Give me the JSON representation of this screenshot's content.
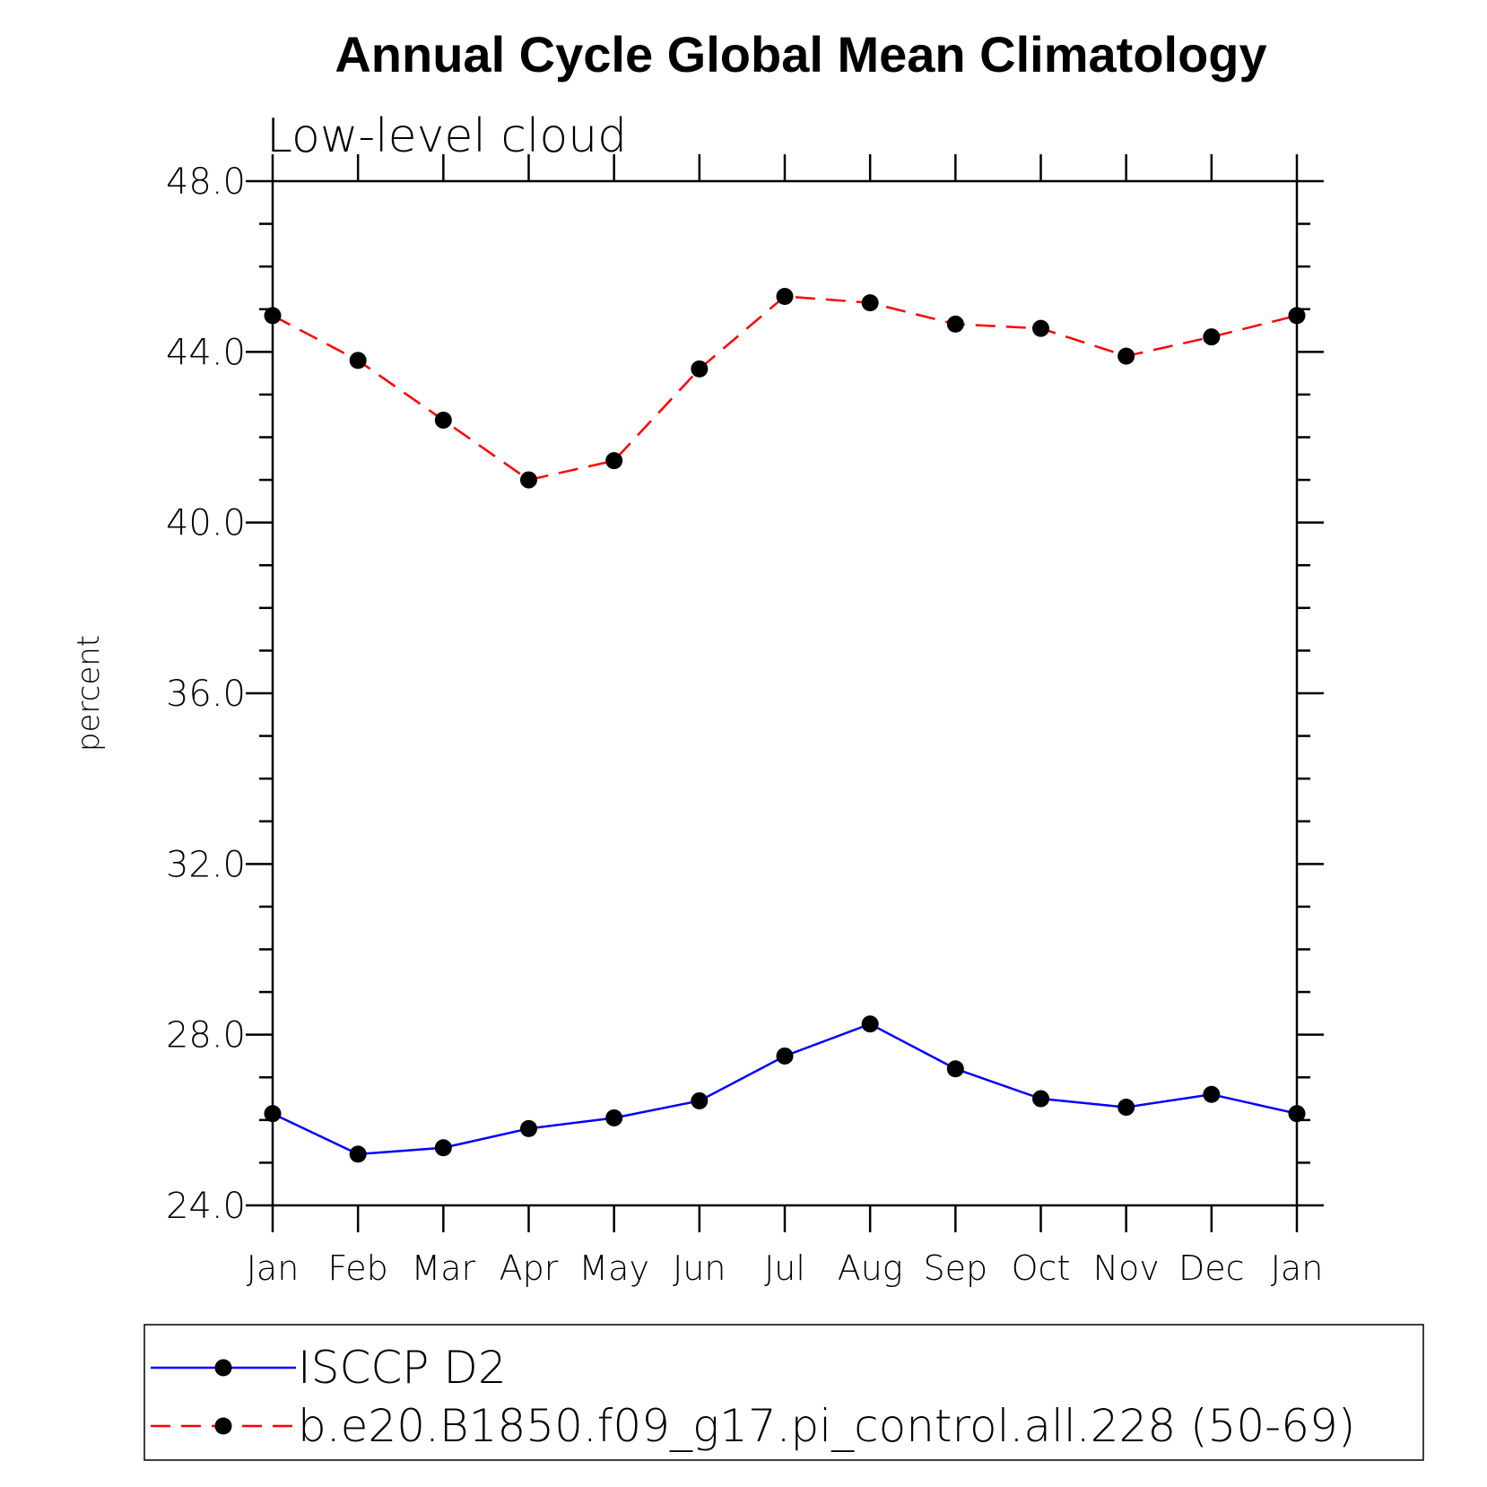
{
  "chart_data": {
    "type": "line",
    "title": "Annual Cycle Global Mean Climatology",
    "subtitle": "Low-level cloud",
    "ylabel": "percent",
    "xlabel": "",
    "ylim": [
      24.0,
      48.0
    ],
    "y_ticks": [
      "24.0",
      "28.0",
      "32.0",
      "36.0",
      "40.0",
      "44.0",
      "48.0"
    ],
    "categories": [
      "Jan",
      "Feb",
      "Mar",
      "Apr",
      "May",
      "Jun",
      "Jul",
      "Aug",
      "Sep",
      "Oct",
      "Nov",
      "Dec",
      "Jan"
    ],
    "grid": false,
    "legend_position": "bottom",
    "series": [
      {
        "name": "ISCCP D2",
        "color": "#0000ff",
        "line_style": "solid",
        "marker": "filled-circle",
        "values": [
          26.15,
          25.2,
          25.35,
          25.8,
          26.05,
          26.45,
          27.5,
          28.25,
          27.2,
          26.5,
          26.3,
          26.6,
          26.15
        ]
      },
      {
        "name": "b.e20.B1850.f09_g17.pi_control.all.228 (50-69)",
        "color": "#ff0000",
        "line_style": "dashed",
        "marker": "filled-circle",
        "values": [
          44.85,
          43.8,
          42.4,
          41.0,
          41.45,
          43.6,
          45.3,
          45.15,
          44.65,
          44.55,
          43.9,
          44.35,
          44.85
        ]
      }
    ]
  }
}
